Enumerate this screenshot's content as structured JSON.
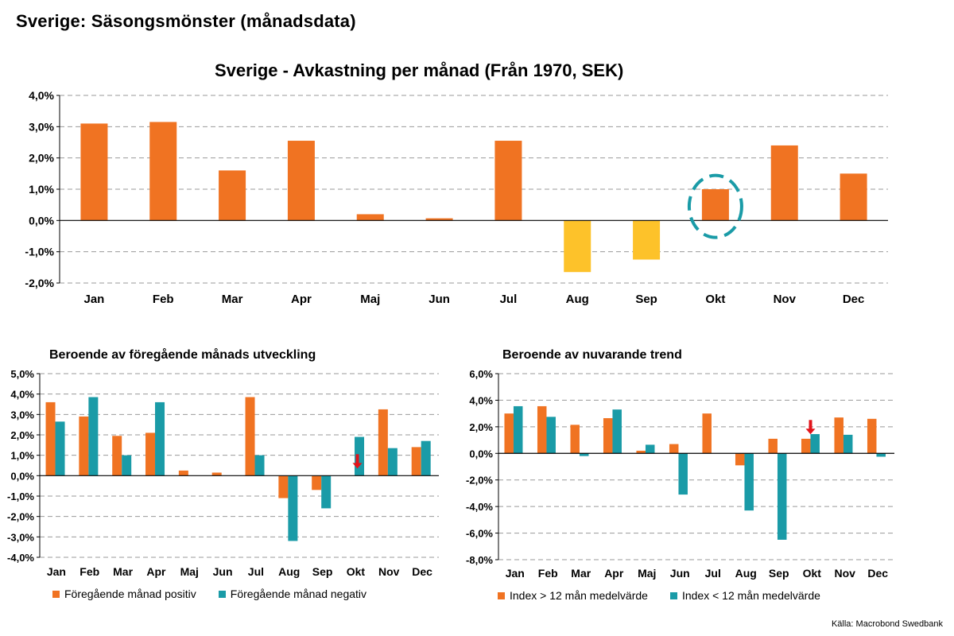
{
  "page": {
    "title": "Sverige: Säsongsmönster (månadsdata)",
    "source": "Källa: Macrobond Swedbank"
  },
  "colors": {
    "orange": "#F07322",
    "yellow": "#FDC22A",
    "teal": "#1A9BA7",
    "gridline": "#999999",
    "annotation_circle": "#1A9BA7",
    "arrow": "#E2141B"
  },
  "chart_data": [
    {
      "id": "main",
      "type": "bar",
      "title": "Sverige - Avkastning per månad (Från 1970, SEK)",
      "categories": [
        "Jan",
        "Feb",
        "Mar",
        "Apr",
        "Maj",
        "Jun",
        "Jul",
        "Aug",
        "Sep",
        "Okt",
        "Nov",
        "Dec"
      ],
      "values": [
        3.1,
        3.15,
        1.6,
        2.55,
        0.2,
        0.07,
        2.55,
        -1.65,
        -1.25,
        1.0,
        2.4,
        1.5
      ],
      "ylim": [
        -2.0,
        4.0
      ],
      "yticks": [
        "4,0%",
        "3,0%",
        "2,0%",
        "1,0%",
        "0,0%",
        "-1,0%",
        "-2,0%"
      ],
      "grid": true,
      "annotations": [
        {
          "type": "dashed-circle",
          "category": "Okt"
        }
      ]
    },
    {
      "id": "prev-month",
      "type": "bar",
      "title": "Beroende av föregående månads utveckling",
      "categories": [
        "Jan",
        "Feb",
        "Mar",
        "Apr",
        "Maj",
        "Jun",
        "Jul",
        "Aug",
        "Sep",
        "Okt",
        "Nov",
        "Dec"
      ],
      "series": [
        {
          "name": "Föregående månad positiv",
          "values": [
            3.6,
            2.9,
            1.95,
            2.1,
            0.25,
            0.15,
            3.85,
            -1.1,
            -0.7,
            0.0,
            3.25,
            1.4
          ]
        },
        {
          "name": "Föregående månad negativ",
          "values": [
            2.65,
            3.85,
            1.0,
            3.6,
            0.0,
            0.0,
            1.0,
            -3.2,
            -1.6,
            1.9,
            1.35,
            1.7
          ]
        }
      ],
      "ylim": [
        -4.0,
        5.0
      ],
      "yticks": [
        "5,0%",
        "4,0%",
        "3,0%",
        "2,0%",
        "1,0%",
        "0,0%",
        "-1,0%",
        "-2,0%",
        "-3,0%",
        "-4,0%"
      ],
      "legend": "bottom",
      "annotations": [
        {
          "type": "arrow-down",
          "category": "Okt"
        }
      ]
    },
    {
      "id": "trend",
      "type": "bar",
      "title": "Beroende av nuvarande trend",
      "categories": [
        "Jan",
        "Feb",
        "Mar",
        "Apr",
        "Maj",
        "Jun",
        "Jul",
        "Aug",
        "Sep",
        "Okt",
        "Nov",
        "Dec"
      ],
      "series": [
        {
          "name": "Index > 12 mån medelvärde",
          "values": [
            3.0,
            3.55,
            2.15,
            2.65,
            0.2,
            0.7,
            3.0,
            -0.9,
            1.1,
            1.1,
            2.7,
            2.6
          ]
        },
        {
          "name": "Index < 12 mån medelvärde",
          "values": [
            3.55,
            2.75,
            -0.2,
            3.3,
            0.65,
            -3.1,
            0.0,
            -4.3,
            -6.5,
            1.45,
            1.4,
            -0.25
          ]
        }
      ],
      "ylim": [
        -8.0,
        6.0
      ],
      "yticks": [
        "6,0%",
        "4,0%",
        "2,0%",
        "0,0%",
        "-2,0%",
        "-4,0%",
        "-6,0%",
        "-8,0%"
      ],
      "legend": "bottom",
      "annotations": [
        {
          "type": "arrow-down",
          "category": "Okt"
        }
      ]
    }
  ]
}
